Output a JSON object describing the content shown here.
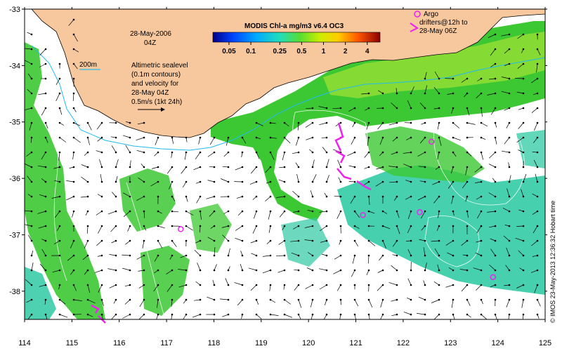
{
  "map": {
    "date_label": "28-May-2006",
    "time_label": "04Z",
    "colorbar": {
      "title": "MODIS Chl-a mg/m3 v6.4 OC3",
      "tick_labels": [
        "0.05",
        "0.1",
        "0.25",
        "0.5",
        "1",
        "2",
        "4"
      ],
      "scale": "log",
      "range_mg_m3": [
        0.03,
        6
      ]
    },
    "contour_label": "200m",
    "altimetry_text": [
      "Altimetric sealevel",
      "(0.1m contours)",
      "and velocity for",
      "28-May 04Z",
      "0.5m/s (1kt 24h)"
    ],
    "argo_legend": [
      "Argo",
      "drifters@12h to",
      "28-May 06Z"
    ],
    "credit": "© IMOS 23-May-2013 12:36:32 Hobart time",
    "x_ticks": [
      "114",
      "115",
      "116",
      "117",
      "118",
      "119",
      "120",
      "121",
      "122",
      "123",
      "124",
      "125"
    ],
    "y_ticks": [
      "-33",
      "-34",
      "-35",
      "-36",
      "-37",
      "-38"
    ],
    "lon_range": [
      114,
      125
    ],
    "lat_range": [
      -38.5,
      -33
    ],
    "colors": {
      "land": "#f7c79e",
      "shelf_contour": "#22bbee",
      "argo": "#ee22ee",
      "chl_high": "#3cc832",
      "chl_mid": "#2ec9a3",
      "vectors": "#000000"
    },
    "argo_floats": [
      {
        "lon": 117.3,
        "lat": -36.9
      },
      {
        "lon": 121.15,
        "lat": -36.65
      },
      {
        "lon": 122.35,
        "lat": -36.6
      },
      {
        "lon": 122.6,
        "lat": -35.35
      },
      {
        "lon": 123.9,
        "lat": -37.75
      }
    ]
  }
}
